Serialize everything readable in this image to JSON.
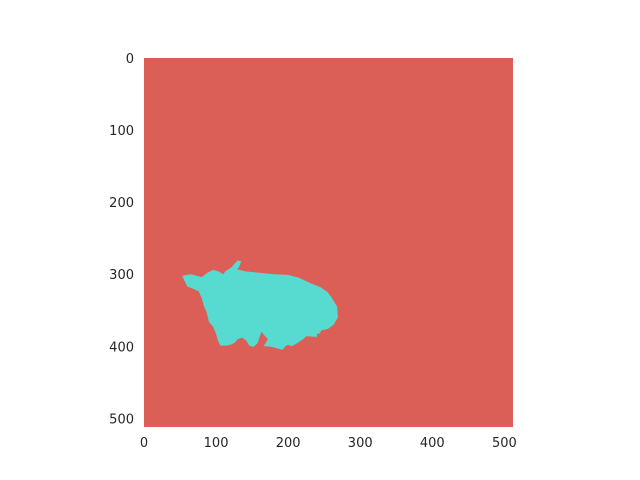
{
  "chart_data": {
    "type": "heatmap",
    "subtype": "segmentation-mask",
    "image_size": [
      512,
      512
    ],
    "xlim": [
      0,
      512
    ],
    "ylim": [
      512,
      0
    ],
    "x_ticks": [
      0,
      100,
      200,
      300,
      400,
      500
    ],
    "y_ticks": [
      0,
      100,
      200,
      300,
      400,
      500
    ],
    "x_tick_labels": [
      "0",
      "100",
      "200",
      "300",
      "400",
      "500"
    ],
    "y_tick_labels": [
      "0",
      "100",
      "200",
      "300",
      "400",
      "500"
    ],
    "title": "",
    "xlabel": "",
    "ylabel": "",
    "grid": false,
    "classes": [
      {
        "name": "background",
        "color": "#db5f57"
      },
      {
        "name": "foreground",
        "color": "#57dbd0"
      }
    ],
    "foreground_outline_points": [
      [
        53,
        302
      ],
      [
        65,
        300
      ],
      [
        80,
        304
      ],
      [
        88,
        298
      ],
      [
        96,
        294
      ],
      [
        103,
        296
      ],
      [
        110,
        300
      ],
      [
        113,
        296
      ],
      [
        119,
        292
      ],
      [
        122,
        290
      ],
      [
        126,
        285
      ],
      [
        130,
        281
      ],
      [
        135,
        282
      ],
      [
        132,
        290
      ],
      [
        129,
        293
      ],
      [
        140,
        296
      ],
      [
        160,
        298
      ],
      [
        180,
        300
      ],
      [
        200,
        301
      ],
      [
        215,
        305
      ],
      [
        230,
        312
      ],
      [
        245,
        318
      ],
      [
        255,
        325
      ],
      [
        262,
        335
      ],
      [
        268,
        345
      ],
      [
        269,
        360
      ],
      [
        263,
        370
      ],
      [
        255,
        376
      ],
      [
        246,
        378
      ],
      [
        244,
        382
      ],
      [
        240,
        383
      ],
      [
        240,
        387
      ],
      [
        225,
        386
      ],
      [
        222,
        389
      ],
      [
        218,
        392
      ],
      [
        212,
        396
      ],
      [
        205,
        400
      ],
      [
        200,
        398
      ],
      [
        196,
        400
      ],
      [
        192,
        405
      ],
      [
        185,
        403
      ],
      [
        178,
        401
      ],
      [
        170,
        400
      ],
      [
        166,
        400
      ],
      [
        172,
        390
      ],
      [
        168,
        386
      ],
      [
        163,
        380
      ],
      [
        160,
        388
      ],
      [
        158,
        395
      ],
      [
        152,
        401
      ],
      [
        146,
        399
      ],
      [
        142,
        392
      ],
      [
        136,
        388
      ],
      [
        130,
        390
      ],
      [
        126,
        395
      ],
      [
        120,
        398
      ],
      [
        113,
        399
      ],
      [
        106,
        399
      ],
      [
        103,
        393
      ],
      [
        100,
        383
      ],
      [
        96,
        373
      ],
      [
        90,
        366
      ],
      [
        87,
        353
      ],
      [
        83,
        344
      ],
      [
        80,
        333
      ],
      [
        76,
        324
      ],
      [
        70,
        321
      ],
      [
        60,
        317
      ]
    ]
  }
}
